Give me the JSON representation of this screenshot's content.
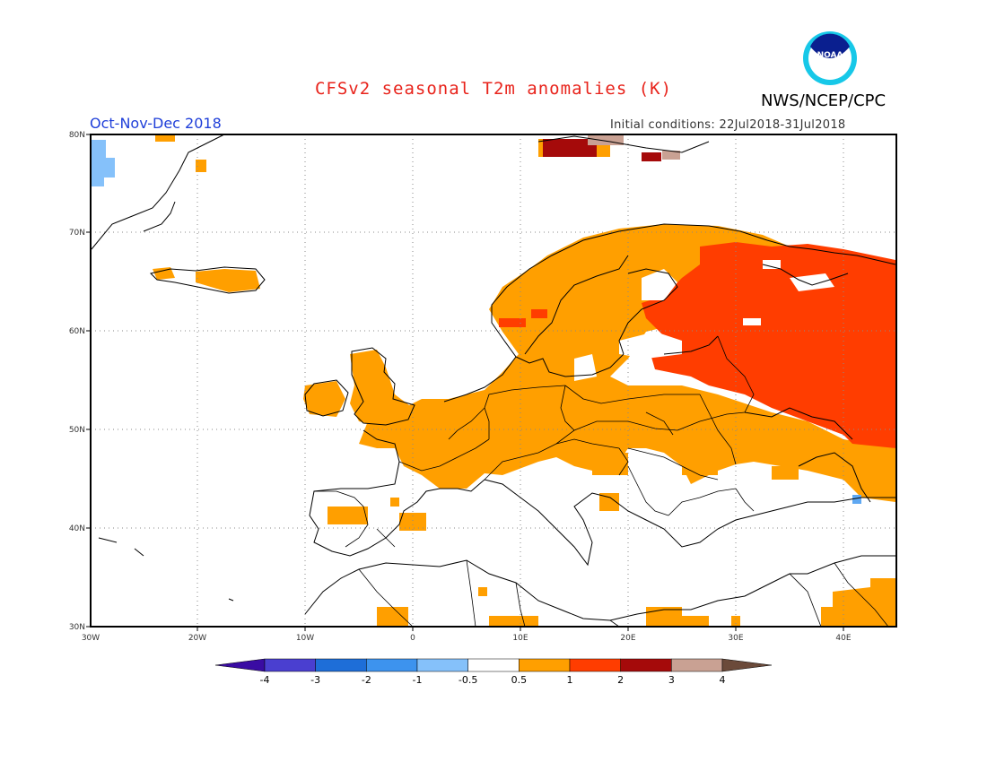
{
  "header": {
    "title": "CFSv2 seasonal T2m anomalies (K)",
    "agency": "NWS/NCEP/CPC",
    "season": "Oct-Nov-Dec 2018",
    "initial_conditions": "Initial conditions: 22Jul2018-31Jul2018",
    "logo_text": "NOAA"
  },
  "map": {
    "lon_range": [
      -30,
      45
    ],
    "lat_range": [
      30,
      80
    ],
    "lat_ticks": [
      "30N",
      "40N",
      "50N",
      "60N",
      "70N",
      "80N"
    ],
    "lon_ticks": [
      "30W",
      "20W",
      "10W",
      "0",
      "10E",
      "20E",
      "30E",
      "40E"
    ],
    "grid": true
  },
  "legend": {
    "labels": [
      "-4",
      "-3",
      "-2",
      "-1",
      "-0.5",
      "0.5",
      "1",
      "2",
      "3",
      "4"
    ],
    "colors": [
      "#3a0ca3",
      "#4a3fd0",
      "#1e6ed8",
      "#3d93ee",
      "#85c1fa",
      "#ffffff",
      "#ff9f00",
      "#ff3d00",
      "#a50a0a",
      "#c9a193",
      "#6b4a3a"
    ]
  },
  "anomaly_colors": {
    "cold_light": "#85c1fa",
    "cold_medium": "#5fa8f2",
    "warm_1": "#ff9f00",
    "warm_2": "#ff3d00",
    "warm_3": "#a50a0a",
    "warm_4": "#c9a193"
  }
}
